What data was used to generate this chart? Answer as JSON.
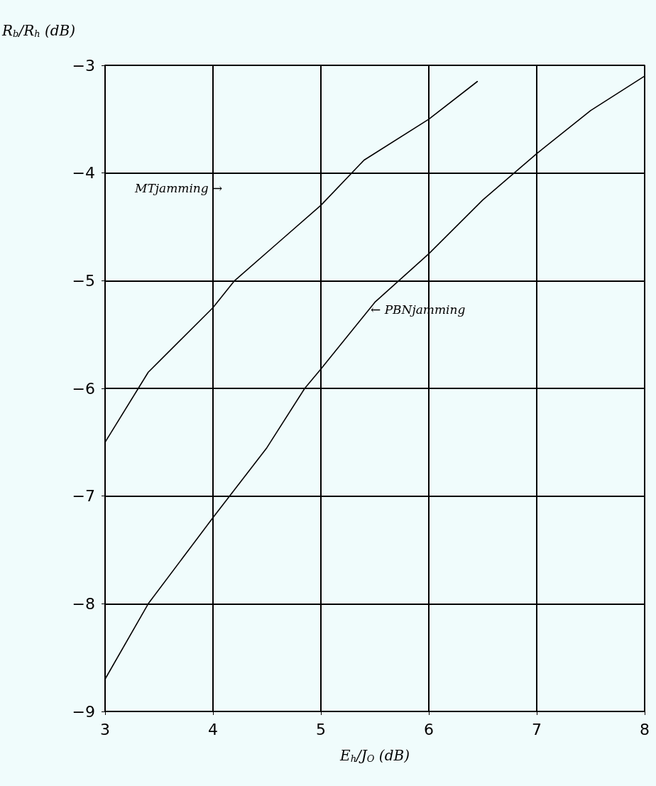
{
  "chart_data": {
    "type": "line",
    "xlabel": "E$_{h}$/J$_{O}$ (dB)",
    "ylabel": "R$_{b}$/R$_{h}$ (dB)",
    "xlim": [
      3,
      8
    ],
    "xticks": [
      3,
      4,
      5,
      6,
      7,
      8
    ],
    "ylim": [
      -9,
      -3
    ],
    "yticks": [
      -9,
      -8,
      -7,
      -6,
      -5,
      -4,
      -3
    ],
    "grid": true,
    "marker": "none",
    "line_style": "solid",
    "series": [
      {
        "color": "#000000",
        "x": [
          3,
          3.4,
          4,
          4.2,
          4.6,
          5,
          5.4,
          6,
          6.45
        ],
        "values": [
          -6.5,
          -5.85,
          -5.25,
          -5.0,
          -4.65,
          -4.3,
          -3.88,
          -3.5,
          -3.15
        ]
      },
      {
        "color": "#000000",
        "x": [
          3,
          3.4,
          4,
          4.5,
          4.85,
          5,
          5.5,
          6,
          6.5,
          7,
          7.5,
          8
        ],
        "values": [
          -8.7,
          -8.0,
          -7.2,
          -6.55,
          -6.0,
          -5.82,
          -5.2,
          -4.75,
          -4.25,
          -3.82,
          -3.42,
          -3.1
        ]
      }
    ],
    "annotations": [
      "MTjamming →",
      "← PBNjamming"
    ]
  }
}
